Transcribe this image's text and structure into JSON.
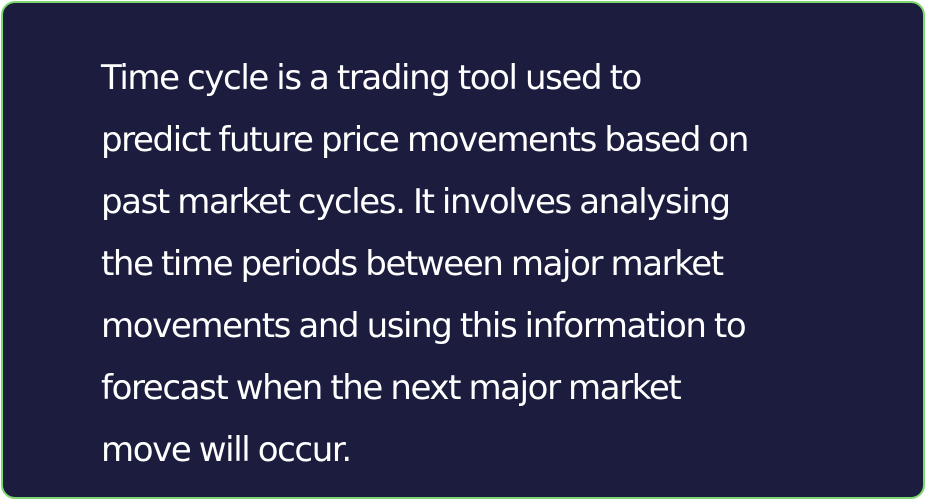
{
  "card": {
    "lines": [
      "Time cycle is a trading tool used to",
      "predict future price movements based on",
      "past market cycles. It involves analysing",
      "the time periods between major market",
      "movements and using this information to",
      "forecast when the next major market",
      "move will occur."
    ]
  },
  "colors": {
    "background": "#1c1c3f",
    "border": "#7cd86f",
    "text": "#ffffff"
  }
}
